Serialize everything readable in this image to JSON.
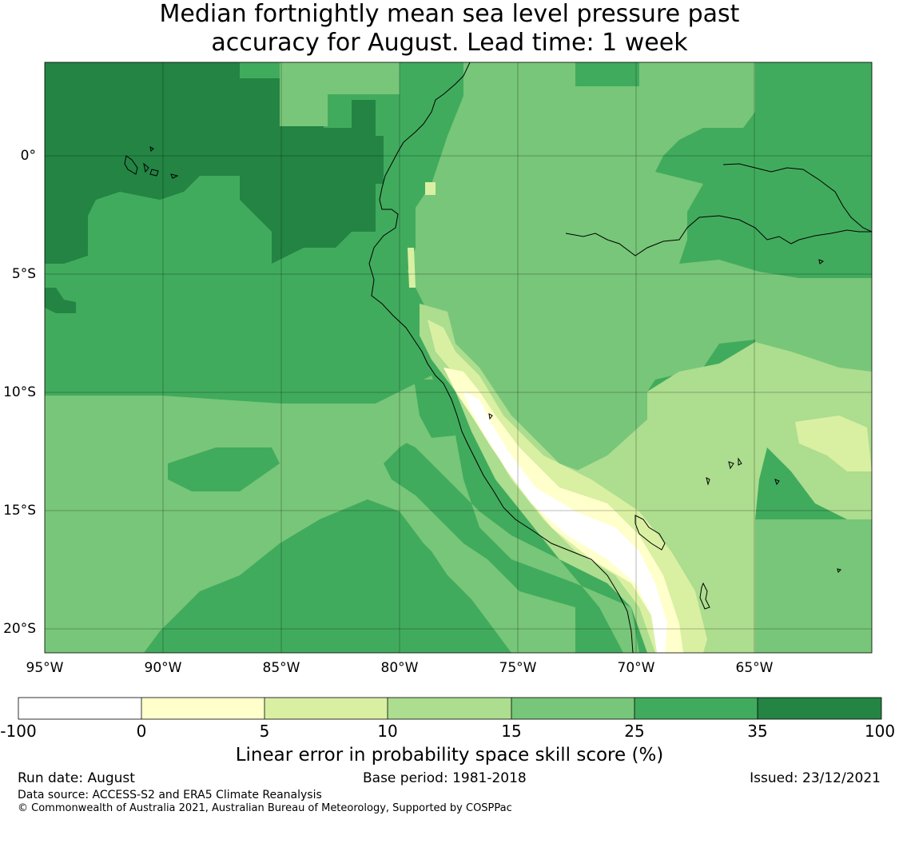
{
  "title": {
    "line1": "Median fortnightly mean sea level pressure past",
    "line2": "accuracy for August. Lead time: 1 week"
  },
  "map": {
    "lon_ticks": [
      "95°W",
      "90°W",
      "85°W",
      "80°W",
      "75°W",
      "70°W",
      "65°W"
    ],
    "lat_ticks": [
      "0°",
      "5°S",
      "10°S",
      "15°S",
      "20°S"
    ],
    "lon_range": [
      -95,
      -60
    ],
    "lat_range": [
      -21,
      4
    ],
    "colors": {
      "c1": "#ffffff",
      "c2": "#ffffcc",
      "c3": "#d9f0a3",
      "c4": "#addd8e",
      "c5": "#78c679",
      "c6": "#41ab5d",
      "c7": "#238443"
    }
  },
  "colorbar": {
    "ticks": [
      "-100",
      "0",
      "5",
      "10",
      "15",
      "25",
      "35",
      "100"
    ],
    "caption": "Linear error in probability space skill score (%)"
  },
  "footer": {
    "run_date": "Run date: August",
    "base_period": "Base period: 1981-2018",
    "issued": "Issued: 23/12/2021",
    "source": "Data source: ACCESS-S2 and ERA5 Climate Reanalysis",
    "copyright": "© Commonwealth of Australia 2021, Australian Bureau of Meteorology, Supported by COSPPac"
  }
}
